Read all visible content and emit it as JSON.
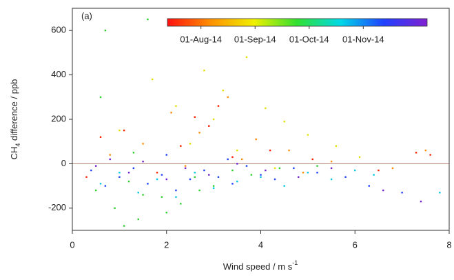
{
  "chart_data": {
    "type": "scatter",
    "panel_label": "(a)",
    "xlabel_parts": [
      "Wind speed / m s",
      "-1"
    ],
    "ylabel_parts": [
      "CH",
      "4",
      " difference / ppb"
    ],
    "xlim": [
      0,
      8
    ],
    "ylim": [
      -300,
      700
    ],
    "xticks": [
      0,
      2,
      4,
      6,
      8
    ],
    "yticks": [
      -200,
      0,
      200,
      400,
      600
    ],
    "hline": 0,
    "hline_color": "#b08070",
    "colorbar": {
      "ticks": [
        "01-Aug-14",
        "01-Sep-14",
        "01-Oct-14",
        "01-Nov-14"
      ],
      "colors": [
        "#ff1010",
        "#ff9000",
        "#f0f000",
        "#30e030",
        "#00d8e8",
        "#2040ff",
        "#8020d0"
      ]
    },
    "series": [
      {
        "color": "#ff2000",
        "x": [
          0.3,
          0.6,
          1.1,
          1.8,
          2.3,
          2.9,
          3.4,
          4.2,
          5.1,
          6.5,
          7.3,
          7.6,
          2.6,
          3.1
        ],
        "y": [
          -60,
          120,
          150,
          -40,
          80,
          170,
          30,
          60,
          20,
          -30,
          50,
          40,
          210,
          260
        ]
      },
      {
        "color": "#ff8c00",
        "x": [
          0.8,
          1.5,
          2.1,
          2.7,
          3.3,
          3.9,
          4.6,
          5.5,
          6.8,
          7.5,
          2.4,
          3.6,
          4.9
        ],
        "y": [
          40,
          90,
          230,
          140,
          300,
          110,
          60,
          10,
          -20,
          60,
          -10,
          20,
          -40
        ]
      },
      {
        "color": "#e0e000",
        "x": [
          1.0,
          1.7,
          2.2,
          2.8,
          3.2,
          3.7,
          4.1,
          4.5,
          5.0,
          5.6,
          6.1,
          3.0,
          2.5,
          3.5,
          4.3
        ],
        "y": [
          150,
          380,
          260,
          420,
          330,
          480,
          250,
          190,
          130,
          80,
          30,
          200,
          90,
          60,
          -20
        ]
      },
      {
        "color": "#30d030",
        "x": [
          0.5,
          0.7,
          0.9,
          1.2,
          1.4,
          1.6,
          1.9,
          2.3,
          2.6,
          3.0,
          3.4,
          3.8,
          4.4,
          5.2,
          1.1,
          0.6,
          1.5,
          2.0,
          1.3,
          2.7
        ],
        "y": [
          -120,
          600,
          -200,
          -80,
          -250,
          650,
          -150,
          -180,
          -60,
          -100,
          -30,
          -50,
          -20,
          -10,
          -280,
          300,
          -140,
          -220,
          50,
          -120
        ]
      },
      {
        "color": "#00c8e0",
        "x": [
          0.6,
          1.0,
          1.4,
          1.8,
          2.2,
          2.6,
          3.0,
          3.5,
          4.0,
          4.5,
          5.0,
          5.5,
          6.0,
          6.4,
          7.8
        ],
        "y": [
          -90,
          -40,
          -130,
          -70,
          -150,
          -40,
          -110,
          -80,
          -60,
          -100,
          -40,
          -70,
          -30,
          -50,
          -130
        ]
      },
      {
        "color": "#2040ff",
        "x": [
          0.4,
          0.7,
          1.0,
          1.3,
          1.6,
          1.9,
          2.2,
          2.5,
          2.8,
          3.1,
          3.4,
          3.7,
          4.0,
          4.3,
          4.7,
          5.2,
          5.8,
          6.3,
          7.0,
          2.0,
          3.3
        ],
        "y": [
          -30,
          -100,
          -60,
          -20,
          -90,
          -50,
          -120,
          -70,
          -30,
          -60,
          -90,
          -10,
          -50,
          -70,
          -20,
          -40,
          -60,
          -100,
          -130,
          40,
          20
        ]
      },
      {
        "color": "#7020d0",
        "x": [
          0.5,
          0.8,
          1.2,
          1.5,
          2.0,
          2.4,
          2.9,
          3.5,
          4.1,
          4.8,
          5.5,
          6.6,
          7.4
        ],
        "y": [
          -10,
          20,
          -40,
          10,
          -70,
          -20,
          -50,
          0,
          -30,
          -60,
          -20,
          -120,
          -170
        ]
      }
    ]
  }
}
